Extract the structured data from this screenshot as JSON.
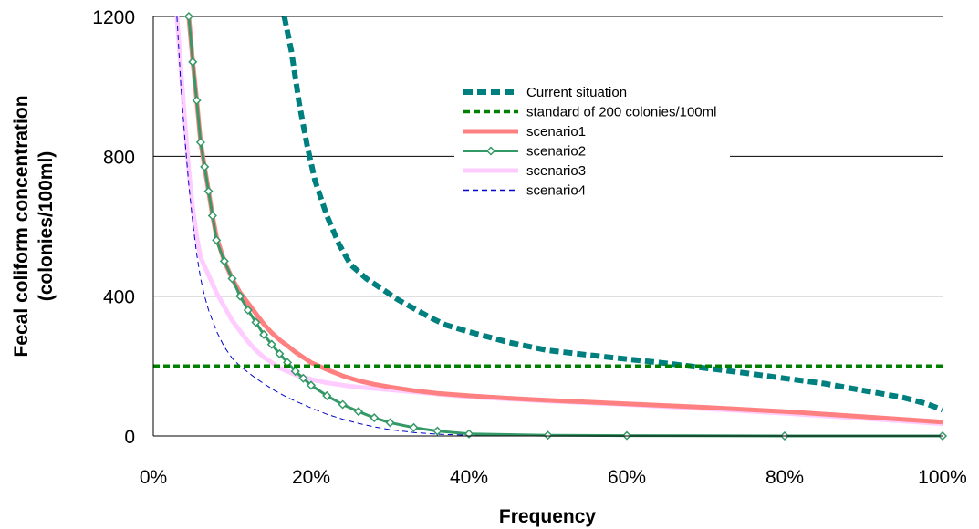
{
  "chart_data": {
    "type": "line",
    "title": "",
    "xlabel": "Frequency",
    "ylabel_lines": [
      "Fecal coliform concentration",
      "(colonies/100ml)"
    ],
    "xlim": [
      0,
      100
    ],
    "ylim": [
      0,
      1200
    ],
    "x_ticks": [
      0,
      20,
      40,
      60,
      80,
      100
    ],
    "x_tick_labels": [
      "0%",
      "20%",
      "40%",
      "60%",
      "80%",
      "100%"
    ],
    "y_ticks": [
      0,
      400,
      800,
      1200
    ],
    "y_tick_labels": [
      "0",
      "400",
      "800",
      "1200"
    ],
    "grid": "horizontal",
    "legend_position": "top-right",
    "series": [
      {
        "name": "Current situation",
        "color": "#007f7f",
        "style": "thick-dashed",
        "points": [
          [
            16.6,
            1200
          ],
          [
            17.5,
            1100
          ],
          [
            18.5,
            950
          ],
          [
            19.5,
            830
          ],
          [
            20.5,
            730
          ],
          [
            22,
            630
          ],
          [
            23.5,
            550
          ],
          [
            25,
            490
          ],
          [
            27,
            450
          ],
          [
            29,
            420
          ],
          [
            31,
            390
          ],
          [
            33,
            365
          ],
          [
            35,
            340
          ],
          [
            37,
            318
          ],
          [
            40,
            298
          ],
          [
            45,
            268
          ],
          [
            50,
            245
          ],
          [
            55,
            232
          ],
          [
            60,
            220
          ],
          [
            65,
            208
          ],
          [
            70,
            194
          ],
          [
            75,
            180
          ],
          [
            80,
            165
          ],
          [
            85,
            150
          ],
          [
            90,
            130
          ],
          [
            95,
            110
          ],
          [
            98,
            92
          ],
          [
            100,
            75
          ]
        ]
      },
      {
        "name": "standard of 200 colonies/100ml",
        "color": "#008000",
        "style": "dashed",
        "points": [
          [
            0,
            200
          ],
          [
            100,
            200
          ]
        ]
      },
      {
        "name": "scenario1",
        "color": "#ff8080",
        "style": "thick-solid",
        "points": [
          [
            4.5,
            1200
          ],
          [
            5,
            1070
          ],
          [
            5.5,
            960
          ],
          [
            6,
            840
          ],
          [
            6.5,
            770
          ],
          [
            7,
            700
          ],
          [
            7.5,
            630
          ],
          [
            8,
            570
          ],
          [
            9,
            500
          ],
          [
            10,
            450
          ],
          [
            11,
            410
          ],
          [
            12,
            380
          ],
          [
            13,
            350
          ],
          [
            14,
            320
          ],
          [
            15,
            295
          ],
          [
            16,
            275
          ],
          [
            17,
            258
          ],
          [
            18,
            240
          ],
          [
            19,
            225
          ],
          [
            20,
            210
          ],
          [
            22,
            190
          ],
          [
            24,
            172
          ],
          [
            26,
            158
          ],
          [
            28,
            148
          ],
          [
            30,
            140
          ],
          [
            33,
            130
          ],
          [
            36,
            122
          ],
          [
            40,
            115
          ],
          [
            45,
            108
          ],
          [
            50,
            102
          ],
          [
            60,
            92
          ],
          [
            70,
            82
          ],
          [
            80,
            70
          ],
          [
            90,
            55
          ],
          [
            100,
            40
          ]
        ]
      },
      {
        "name": "scenario2",
        "color": "#339966",
        "style": "solid-diamond",
        "points": [
          [
            4.5,
            1200
          ],
          [
            5,
            1070
          ],
          [
            5.5,
            960
          ],
          [
            6,
            840
          ],
          [
            6.5,
            770
          ],
          [
            7,
            700
          ],
          [
            7.5,
            630
          ],
          [
            8,
            560
          ],
          [
            9,
            500
          ],
          [
            10,
            450
          ],
          [
            11,
            400
          ],
          [
            12,
            360
          ],
          [
            13,
            325
          ],
          [
            14,
            290
          ],
          [
            15,
            262
          ],
          [
            16,
            235
          ],
          [
            17,
            210
          ],
          [
            18,
            185
          ],
          [
            19,
            165
          ],
          [
            20,
            145
          ],
          [
            22,
            115
          ],
          [
            24,
            90
          ],
          [
            26,
            70
          ],
          [
            28,
            52
          ],
          [
            30,
            38
          ],
          [
            33,
            24
          ],
          [
            36,
            14
          ],
          [
            40,
            6
          ],
          [
            50,
            2
          ],
          [
            60,
            1
          ],
          [
            80,
            0
          ],
          [
            100,
            0
          ]
        ]
      },
      {
        "name": "scenario3",
        "color": "#ffccff",
        "style": "thick-solid",
        "points": [
          [
            3,
            1200
          ],
          [
            3.5,
            1050
          ],
          [
            4,
            900
          ],
          [
            4.5,
            760
          ],
          [
            5,
            650
          ],
          [
            5.5,
            570
          ],
          [
            6,
            510
          ],
          [
            7,
            460
          ],
          [
            8,
            410
          ],
          [
            9,
            370
          ],
          [
            10,
            330
          ],
          [
            11,
            300
          ],
          [
            12,
            270
          ],
          [
            13,
            245
          ],
          [
            14,
            225
          ],
          [
            15,
            210
          ],
          [
            16,
            195
          ],
          [
            17,
            185
          ],
          [
            18,
            175
          ],
          [
            20,
            162
          ],
          [
            22,
            152
          ],
          [
            25,
            142
          ],
          [
            30,
            132
          ],
          [
            35,
            122
          ],
          [
            40,
            112
          ],
          [
            50,
            100
          ],
          [
            60,
            90
          ],
          [
            70,
            78
          ],
          [
            80,
            65
          ],
          [
            90,
            50
          ],
          [
            100,
            35
          ]
        ]
      },
      {
        "name": "scenario4",
        "color": "#0000cc",
        "style": "thin-dashed",
        "points": [
          [
            3,
            1200
          ],
          [
            3.5,
            1000
          ],
          [
            4,
            850
          ],
          [
            4.5,
            720
          ],
          [
            5,
            610
          ],
          [
            5.5,
            520
          ],
          [
            6,
            450
          ],
          [
            6.5,
            400
          ],
          [
            7,
            360
          ],
          [
            8,
            300
          ],
          [
            9,
            255
          ],
          [
            10,
            222
          ],
          [
            11,
            200
          ],
          [
            12,
            182
          ],
          [
            13,
            165
          ],
          [
            14,
            150
          ],
          [
            15,
            135
          ],
          [
            16,
            122
          ],
          [
            17,
            110
          ],
          [
            18,
            100
          ],
          [
            20,
            80
          ],
          [
            22,
            62
          ],
          [
            24,
            48
          ],
          [
            26,
            36
          ],
          [
            28,
            26
          ],
          [
            30,
            18
          ],
          [
            33,
            10
          ],
          [
            36,
            5
          ],
          [
            40,
            2
          ],
          [
            50,
            0
          ],
          [
            100,
            0
          ]
        ]
      }
    ]
  }
}
